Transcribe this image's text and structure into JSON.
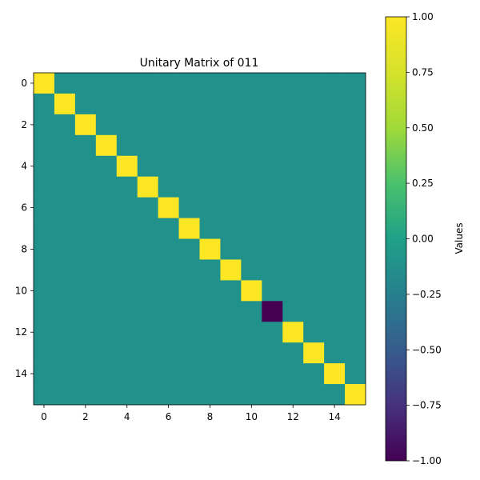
{
  "chart_data": {
    "type": "heatmap",
    "title": "Unitary Matrix of 011",
    "xlabel": "",
    "ylabel": "",
    "rows": 16,
    "cols": 16,
    "x_ticks": [
      0,
      2,
      4,
      6,
      8,
      10,
      12,
      14
    ],
    "y_ticks": [
      0,
      2,
      4,
      6,
      8,
      10,
      12,
      14
    ],
    "matrix": [
      [
        1,
        0,
        0,
        0,
        0,
        0,
        0,
        0,
        0,
        0,
        0,
        0,
        0,
        0,
        0,
        0
      ],
      [
        0,
        1,
        0,
        0,
        0,
        0,
        0,
        0,
        0,
        0,
        0,
        0,
        0,
        0,
        0,
        0
      ],
      [
        0,
        0,
        1,
        0,
        0,
        0,
        0,
        0,
        0,
        0,
        0,
        0,
        0,
        0,
        0,
        0
      ],
      [
        0,
        0,
        0,
        1,
        0,
        0,
        0,
        0,
        0,
        0,
        0,
        0,
        0,
        0,
        0,
        0
      ],
      [
        0,
        0,
        0,
        0,
        1,
        0,
        0,
        0,
        0,
        0,
        0,
        0,
        0,
        0,
        0,
        0
      ],
      [
        0,
        0,
        0,
        0,
        0,
        1,
        0,
        0,
        0,
        0,
        0,
        0,
        0,
        0,
        0,
        0
      ],
      [
        0,
        0,
        0,
        0,
        0,
        0,
        1,
        0,
        0,
        0,
        0,
        0,
        0,
        0,
        0,
        0
      ],
      [
        0,
        0,
        0,
        0,
        0,
        0,
        0,
        1,
        0,
        0,
        0,
        0,
        0,
        0,
        0,
        0
      ],
      [
        0,
        0,
        0,
        0,
        0,
        0,
        0,
        0,
        1,
        0,
        0,
        0,
        0,
        0,
        0,
        0
      ],
      [
        0,
        0,
        0,
        0,
        0,
        0,
        0,
        0,
        0,
        1,
        0,
        0,
        0,
        0,
        0,
        0
      ],
      [
        0,
        0,
        0,
        0,
        0,
        0,
        0,
        0,
        0,
        0,
        1,
        0,
        0,
        0,
        0,
        0
      ],
      [
        0,
        0,
        0,
        0,
        0,
        0,
        0,
        0,
        0,
        0,
        0,
        -1,
        0,
        0,
        0,
        0
      ],
      [
        0,
        0,
        0,
        0,
        0,
        0,
        0,
        0,
        0,
        0,
        0,
        0,
        1,
        0,
        0,
        0
      ],
      [
        0,
        0,
        0,
        0,
        0,
        0,
        0,
        0,
        0,
        0,
        0,
        0,
        0,
        1,
        0,
        0
      ],
      [
        0,
        0,
        0,
        0,
        0,
        0,
        0,
        0,
        0,
        0,
        0,
        0,
        0,
        0,
        1,
        0
      ],
      [
        0,
        0,
        0,
        0,
        0,
        0,
        0,
        0,
        0,
        0,
        0,
        0,
        0,
        0,
        0,
        1
      ]
    ],
    "colorbar": {
      "label": "Values",
      "vmin": -1.0,
      "vmax": 1.0,
      "ticks": [
        -1.0,
        -0.75,
        -0.5,
        -0.25,
        0.0,
        0.25,
        0.5,
        0.75,
        1.0
      ],
      "tick_labels": [
        "−1.00",
        "−0.75",
        "−0.50",
        "−0.25",
        "0.00",
        "0.25",
        "0.50",
        "0.75",
        "1.00"
      ],
      "colormap": "viridis"
    },
    "colors": {
      "positive": "#fde725",
      "zero": "#21918c",
      "negative": "#440154"
    }
  }
}
